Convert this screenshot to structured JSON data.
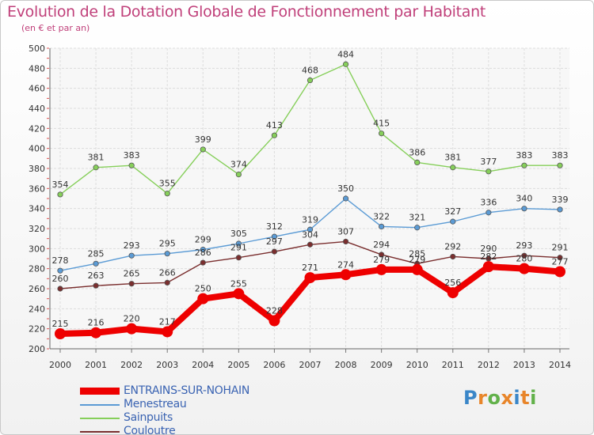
{
  "title": "Evolution de la Dotation Globale de Fonctionnement par Habitant",
  "subtitle": "(en € et par an)",
  "logo": {
    "text": "Proxiti",
    "colors": [
      "#3a86c8",
      "#e8852a",
      "#62b14a",
      "#e8852a",
      "#3a86c8",
      "#e8852a",
      "#62b14a"
    ]
  },
  "chart_data": {
    "type": "line",
    "title": "Evolution de la Dotation Globale de Fonctionnement par Habitant",
    "subtitle": "(en € et par an)",
    "xlabel": "",
    "ylabel": "",
    "x": [
      "2000",
      "2001",
      "2002",
      "2003",
      "2004",
      "2005",
      "2006",
      "2007",
      "2008",
      "2009",
      "2010",
      "2011",
      "2012",
      "2013",
      "2014"
    ],
    "ylim": [
      200,
      500
    ],
    "yticks": [
      200,
      220,
      240,
      260,
      280,
      300,
      320,
      340,
      360,
      380,
      400,
      420,
      440,
      460,
      480,
      500
    ],
    "grid": true,
    "legend_position": "bottom-left",
    "series": [
      {
        "name": "ENTRAINS-SUR-NOHAIN",
        "color": "#ee0000",
        "emphasis": true,
        "values": [
          215,
          216,
          220,
          217,
          250,
          255,
          228,
          271,
          274,
          279,
          279,
          256,
          282,
          280,
          277
        ],
        "labels": [
          "215",
          "216",
          "220",
          "217",
          "250",
          "255",
          "228",
          "271",
          "274",
          "279",
          "279",
          "256",
          "282",
          "280",
          "277"
        ]
      },
      {
        "name": "Menestreau",
        "color": "#5b9bd5",
        "values": [
          278,
          285,
          293,
          295,
          299,
          305,
          312,
          319,
          350,
          322,
          321,
          327,
          336,
          340,
          339
        ],
        "labels": [
          "278",
          "285",
          "293",
          "295",
          "299",
          "305",
          "312",
          "319",
          "350",
          "322",
          "321",
          "327",
          "336",
          "340",
          "339"
        ]
      },
      {
        "name": "Sainpuits",
        "color": "#86cf5a",
        "values": [
          354,
          381,
          383,
          355,
          399,
          374,
          413,
          468,
          484,
          415,
          386,
          381,
          377,
          383,
          383
        ],
        "labels": [
          "354",
          "381",
          "383",
          "355",
          "399",
          "374",
          "413",
          "468",
          "484",
          "415",
          "386",
          "381",
          "377",
          "383",
          "383"
        ]
      },
      {
        "name": "Couloutre",
        "color": "#7a2e2e",
        "values": [
          260,
          263,
          265,
          266,
          286,
          291,
          297,
          304,
          307,
          294,
          285,
          292,
          290,
          293,
          291
        ],
        "labels": [
          "260",
          "263",
          "265",
          "266",
          "286",
          "291",
          "297",
          "304",
          "307",
          "294",
          "285",
          "292",
          "290",
          "293",
          "291"
        ]
      }
    ]
  }
}
